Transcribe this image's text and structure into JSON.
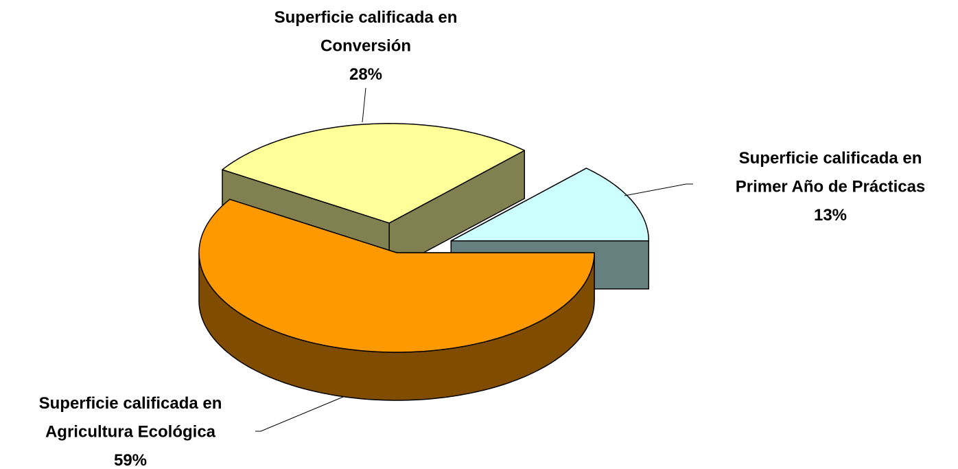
{
  "chart_data": {
    "type": "pie",
    "categories": [
      "Superficie calificada en\nAgricultura Ecológica",
      "Superficie calificada en\nConversión",
      "Superficie calificada en\nPrimer Año de Prácticas"
    ],
    "values": [
      59,
      28,
      13
    ],
    "value_labels": [
      "59%",
      "28%",
      "13%"
    ],
    "colors": [
      "#FF9900",
      "#FFFF99",
      "#CCFFFF"
    ],
    "side_colors": [
      "#804D00",
      "#808050",
      "#668080"
    ]
  }
}
